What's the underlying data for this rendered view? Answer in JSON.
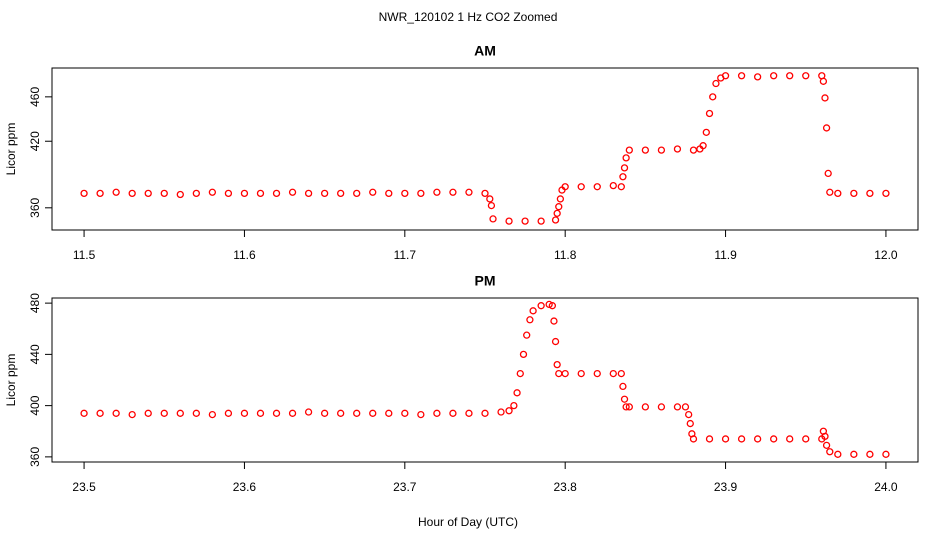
{
  "figure": {
    "title": "NWR_120102  1 Hz CO2 Zoomed",
    "x_label": "Hour of Day (UTC)"
  },
  "chart_data": [
    {
      "type": "scatter",
      "title": "AM",
      "y_label": "Licor ppm",
      "color": "#ff0000",
      "xlim": [
        11.48,
        12.02
      ],
      "ylim": [
        340,
        486
      ],
      "xticks": [
        11.5,
        11.6,
        11.7,
        11.8,
        11.9,
        {
          "value": 12,
          "label": "12.0"
        }
      ],
      "yticks": [
        360,
        420,
        460
      ],
      "x": [
        11.5,
        11.51,
        11.52,
        11.53,
        11.54,
        11.55,
        11.56,
        11.57,
        11.58,
        11.59,
        11.6,
        11.61,
        11.62,
        11.63,
        11.64,
        11.65,
        11.66,
        11.67,
        11.68,
        11.69,
        11.7,
        11.71,
        11.72,
        11.73,
        11.74,
        11.75,
        11.753,
        11.754,
        11.755,
        11.765,
        11.775,
        11.785,
        11.794,
        11.795,
        11.796,
        11.797,
        11.798,
        11.8,
        11.81,
        11.82,
        11.83,
        11.835,
        11.836,
        11.837,
        11.838,
        11.84,
        11.85,
        11.86,
        11.87,
        11.88,
        11.884,
        11.886,
        11.888,
        11.89,
        11.892,
        11.894,
        11.897,
        11.9,
        11.91,
        11.92,
        11.93,
        11.94,
        11.95,
        11.96,
        11.961,
        11.962,
        11.963,
        11.964,
        11.965,
        11.97,
        11.98,
        11.99,
        12.0
      ],
      "values": [
        373,
        373,
        374,
        373,
        373,
        373,
        372,
        373,
        374,
        373,
        373,
        373,
        373,
        374,
        373,
        373,
        373,
        373,
        374,
        373,
        373,
        373,
        374,
        374,
        374,
        373,
        368,
        362,
        350,
        348,
        348,
        348,
        349,
        355,
        361,
        368,
        376,
        379,
        379,
        379,
        380,
        379,
        388,
        396,
        405,
        412,
        412,
        412,
        413,
        412,
        413,
        416,
        428,
        445,
        460,
        472,
        477,
        479,
        479,
        478,
        479,
        479,
        479,
        479,
        474,
        459,
        432,
        391,
        374,
        373,
        373,
        373,
        373
      ]
    },
    {
      "type": "scatter",
      "title": "PM",
      "y_label": "Licor ppm",
      "color": "#ff0000",
      "xlim": [
        23.48,
        24.02
      ],
      "ylim": [
        356,
        484
      ],
      "xticks": [
        23.5,
        23.6,
        23.7,
        23.8,
        23.9,
        {
          "value": 24,
          "label": "24.0"
        }
      ],
      "yticks": [
        360,
        400,
        440,
        480
      ],
      "x": [
        23.5,
        23.51,
        23.52,
        23.53,
        23.54,
        23.55,
        23.56,
        23.57,
        23.58,
        23.59,
        23.6,
        23.61,
        23.62,
        23.63,
        23.64,
        23.65,
        23.66,
        23.67,
        23.68,
        23.69,
        23.7,
        23.71,
        23.72,
        23.73,
        23.74,
        23.75,
        23.76,
        23.765,
        23.768,
        23.77,
        23.772,
        23.774,
        23.776,
        23.778,
        23.78,
        23.785,
        23.79,
        23.792,
        23.793,
        23.794,
        23.795,
        23.796,
        23.8,
        23.81,
        23.82,
        23.83,
        23.835,
        23.836,
        23.837,
        23.838,
        23.84,
        23.85,
        23.86,
        23.87,
        23.875,
        23.877,
        23.878,
        23.879,
        23.88,
        23.89,
        23.9,
        23.91,
        23.92,
        23.93,
        23.94,
        23.95,
        23.96,
        23.961,
        23.962,
        23.963,
        23.965,
        23.97,
        23.98,
        23.99,
        24.0
      ],
      "values": [
        394,
        394,
        394,
        393,
        394,
        394,
        394,
        394,
        393,
        394,
        394,
        394,
        394,
        394,
        395,
        394,
        394,
        394,
        394,
        394,
        394,
        393,
        394,
        394,
        394,
        394,
        395,
        396,
        400,
        410,
        425,
        440,
        455,
        467,
        474,
        478,
        479,
        478,
        466,
        450,
        432,
        425,
        425,
        425,
        425,
        425,
        425,
        415,
        405,
        399,
        399,
        399,
        399,
        399,
        399,
        393,
        386,
        378,
        374,
        374,
        374,
        374,
        374,
        374,
        374,
        374,
        374,
        380,
        376,
        369,
        364,
        362,
        362,
        362,
        362
      ]
    }
  ]
}
